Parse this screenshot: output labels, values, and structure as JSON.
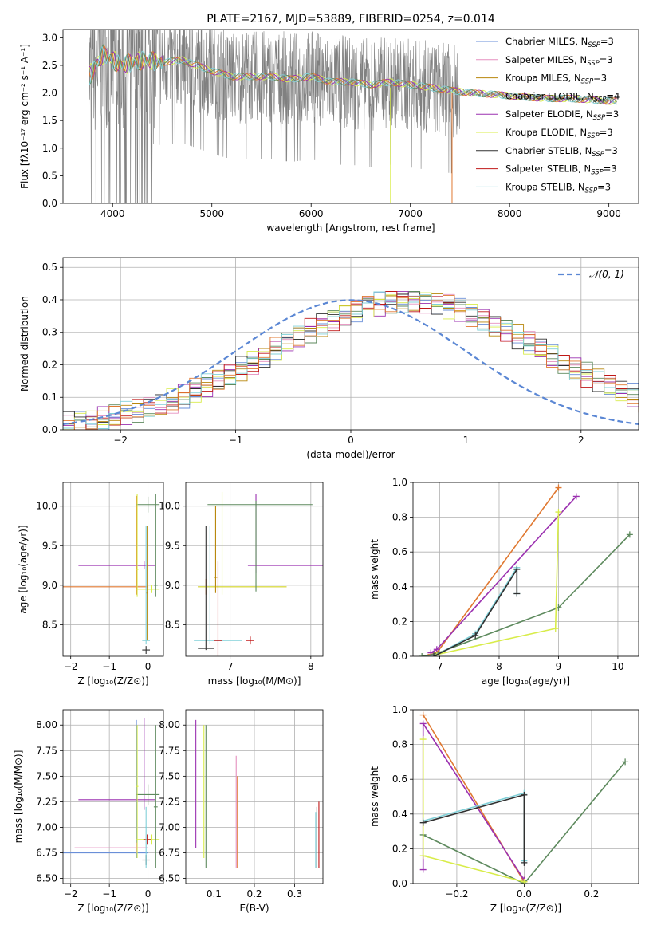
{
  "colors": {
    "Chabrier MILES": "#6a8fd8",
    "Salpeter MILES": "#e58fbf",
    "Kroupa MILES": "#b8860b",
    "Chabrier ELODIE": "#5e8a5e",
    "Salpeter ELODIE": "#9b30b0",
    "Kroupa ELODIE": "#d8ec4a",
    "Chabrier STELIB": "#303030",
    "Salpeter STELIB": "#c01818",
    "Kroupa STELIB": "#80d0d8",
    "data": "#808080",
    "orange": "#e07830",
    "gaussian": "#5b87d4"
  },
  "chart_data": [
    {
      "id": "spectrum",
      "type": "line",
      "title": "PLATE=2167, MJD=53889, FIBERID=0254, z=0.014",
      "xlabel": "wavelength [Angstrom, rest frame]",
      "ylabel": "Flux [fλ10⁻¹⁷ erg cm⁻² s⁻¹ A⁻¹]",
      "xlim": [
        3500,
        9300
      ],
      "ylim": [
        0,
        3.15
      ],
      "xticks": [
        4000,
        5000,
        6000,
        7000,
        8000,
        9000
      ],
      "yticks": [
        0.0,
        0.5,
        1.0,
        1.5,
        2.0,
        2.5,
        3.0
      ],
      "grid": false,
      "legend_position": "top-right",
      "legend": [
        {
          "label": "Chabrier MILES, N",
          "sub": "SSP",
          "tail": "=3",
          "color": "Chabrier MILES"
        },
        {
          "label": "Salpeter MILES, N",
          "sub": "SSP",
          "tail": "=3",
          "color": "Salpeter MILES"
        },
        {
          "label": "Kroupa MILES, N",
          "sub": "SSP",
          "tail": "=3",
          "color": "Kroupa MILES"
        },
        {
          "label": "Chabrier ELODIE, N",
          "sub": "SSP",
          "tail": "=4",
          "color": "Chabrier ELODIE"
        },
        {
          "label": "Salpeter ELODIE, N",
          "sub": "SSP",
          "tail": "=3",
          "color": "Salpeter ELODIE"
        },
        {
          "label": "Kroupa ELODIE, N",
          "sub": "SSP",
          "tail": "=3",
          "color": "Kroupa ELODIE"
        },
        {
          "label": "Chabrier STELIB, N",
          "sub": "SSP",
          "tail": "=3",
          "color": "Chabrier STELIB"
        },
        {
          "label": "Salpeter STELIB, N",
          "sub": "SSP",
          "tail": "=3",
          "color": "Salpeter STELIB"
        },
        {
          "label": "Kroupa STELIB, N",
          "sub": "SSP",
          "tail": "=3",
          "color": "Kroupa STELIB"
        }
      ],
      "series": [
        {
          "name": "data",
          "color": "data",
          "wl_range": [
            3760,
            9080
          ]
        },
        {
          "name": "model",
          "color": "Kroupa STELIB",
          "x": [
            3760,
            3900,
            4000,
            4100,
            4300,
            4500,
            4700,
            4850,
            5000,
            5200,
            5400,
            5600,
            5800,
            6000,
            6200,
            6400,
            6600,
            6800,
            7000,
            7200,
            7400,
            7600,
            7800,
            8000,
            8200,
            8400,
            8600,
            8800,
            9000,
            9080
          ],
          "y": [
            2.3,
            2.7,
            2.6,
            2.5,
            2.6,
            2.55,
            2.6,
            2.5,
            2.4,
            2.3,
            2.3,
            2.3,
            2.25,
            2.3,
            2.2,
            2.2,
            2.15,
            2.2,
            2.15,
            2.1,
            2.05,
            2.0,
            1.98,
            1.95,
            1.92,
            1.9,
            1.9,
            1.88,
            1.85,
            1.85
          ]
        }
      ]
    },
    {
      "id": "residuals",
      "type": "histogram",
      "xlabel": "(data-model)/error",
      "ylabel": "Normed distribution",
      "xlim": [
        -2.5,
        2.5
      ],
      "ylim": [
        0,
        0.53
      ],
      "xticks": [
        -2,
        -1,
        0,
        1,
        2
      ],
      "yticks": [
        0.0,
        0.1,
        0.2,
        0.3,
        0.4,
        0.5
      ],
      "grid": true,
      "legend_position": "top-right",
      "legend": [
        {
          "label": "𝒩(0, 1)",
          "color": "gaussian"
        }
      ],
      "bin_width": 0.1,
      "x_start": -2.5,
      "base": [
        0.018,
        0.022,
        0.027,
        0.033,
        0.04,
        0.048,
        0.056,
        0.066,
        0.077,
        0.089,
        0.104,
        0.119,
        0.135,
        0.152,
        0.17,
        0.189,
        0.208,
        0.228,
        0.248,
        0.268,
        0.288,
        0.307,
        0.325,
        0.342,
        0.357,
        0.37,
        0.381,
        0.39,
        0.396,
        0.399,
        0.399,
        0.396,
        0.39,
        0.381,
        0.37,
        0.357,
        0.342,
        0.325,
        0.307,
        0.288,
        0.268,
        0.248,
        0.228,
        0.208,
        0.189,
        0.17,
        0.152,
        0.135,
        0.119,
        0.104,
        0.089,
        0.077,
        0.066,
        0.056,
        0.048,
        0.04,
        0.033,
        0.027,
        0.022,
        0.018
      ]
    },
    {
      "id": "age-vs-Z",
      "type": "scatter",
      "xlabel": "Z [log₁₀(Z/Z⊙)]",
      "ylabel": "age  [log₁₀(age/yr)]",
      "xlim": [
        -2.2,
        0.4
      ],
      "ylim": [
        8.1,
        10.3
      ],
      "xticks": [
        -2,
        -1,
        0
      ],
      "yticks": [
        8.5,
        9.0,
        9.5,
        10.0
      ],
      "grid": true,
      "points": [
        {
          "x": -0.3,
          "y": 8.98,
          "xerr": [
            1.9,
            0.3
          ],
          "yerr": [
            0.1,
            1.15
          ],
          "color": "orange"
        },
        {
          "x": -0.1,
          "y": 9.25,
          "xerr": [
            1.7,
            0.3
          ],
          "yerr": [
            0.05,
            0.05
          ],
          "color": "Salpeter ELODIE"
        },
        {
          "x": 0.0,
          "y": 10.02,
          "xerr": [
            0.3,
            0.3
          ],
          "yerr": [
            0.1,
            0.1
          ],
          "color": "Chabrier ELODIE"
        },
        {
          "x": 0.1,
          "y": 8.95,
          "xerr": [
            0.4,
            0.2
          ],
          "yerr": [
            0.05,
            0.05
          ],
          "color": "Kroupa ELODIE"
        },
        {
          "x": -0.05,
          "y": 8.3,
          "xerr": [
            0.1,
            0.1
          ],
          "yerr": [
            0.05,
            1.45
          ],
          "color": "Kroupa STELIB"
        },
        {
          "x": -0.05,
          "y": 8.18,
          "xerr": [
            0.1,
            0.1
          ],
          "yerr": [
            0.05,
            0.05
          ],
          "color": "Chabrier STELIB"
        },
        {
          "x": 0.2,
          "y": 9.0,
          "xerr": [
            0.05,
            0.05
          ],
          "yerr": [
            0.15,
            1.15
          ],
          "color": "Chabrier ELODIE"
        },
        {
          "x": -0.28,
          "y": 9.2,
          "xerr": [
            0.03,
            0.03
          ],
          "yerr": [
            0.35,
            0.95
          ],
          "color": "Kroupa ELODIE"
        },
        {
          "x": -0.02,
          "y": 8.9,
          "xerr": [
            0.02,
            0.02
          ],
          "yerr": [
            0.6,
            0.85
          ],
          "color": "Kroupa MILES"
        }
      ]
    },
    {
      "id": "age-vs-mass",
      "type": "scatter",
      "xlabel": "mass [log₁₀(M/M⊙)]",
      "xlim": [
        6.45,
        8.15
      ],
      "ylim": [
        8.1,
        10.3
      ],
      "xticks": [
        7,
        8
      ],
      "yticks": [
        8.5,
        9.0,
        9.5,
        10.0
      ],
      "grid": true,
      "points": [
        {
          "x": 6.7,
          "y": 8.98,
          "xerr": [
            0.1,
            1.0
          ],
          "yerr": [
            0.1,
            0.1
          ],
          "color": "orange"
        },
        {
          "x": 6.9,
          "y": 8.98,
          "xerr": [
            0.3,
            0.8
          ],
          "yerr": [
            0.1,
            1.2
          ],
          "color": "Kroupa ELODIE"
        },
        {
          "x": 7.32,
          "y": 9.25,
          "xerr": [
            0.1,
            0.85
          ],
          "yerr": [
            0.1,
            0.9
          ],
          "color": "Salpeter ELODIE"
        },
        {
          "x": 7.32,
          "y": 10.02,
          "xerr": [
            0.6,
            0.7
          ],
          "yerr": [
            1.1,
            0.05
          ],
          "color": "Chabrier ELODIE"
        },
        {
          "x": 6.75,
          "y": 8.3,
          "xerr": [
            0.2,
            0.4
          ],
          "yerr": [
            0.05,
            1.45
          ],
          "color": "Kroupa STELIB"
        },
        {
          "x": 6.7,
          "y": 8.2,
          "xerr": [
            0.1,
            0.1
          ],
          "yerr": [
            0.02,
            1.55
          ],
          "color": "Chabrier STELIB"
        },
        {
          "x": 6.85,
          "y": 8.3,
          "xerr": [
            0.05,
            0.05
          ],
          "yerr": [
            0.3,
            1.0
          ],
          "color": "Salpeter STELIB"
        },
        {
          "x": 7.25,
          "y": 8.3,
          "xerr": [
            0.05,
            0.05
          ],
          "yerr": [
            0.05,
            0.05
          ],
          "color": "Salpeter STELIB"
        },
        {
          "x": 6.82,
          "y": 9.1,
          "xerr": [
            0.02,
            0.02
          ],
          "yerr": [
            0.2,
            0.9
          ],
          "color": "Kroupa MILES"
        }
      ]
    },
    {
      "id": "massweight-vs-age",
      "type": "line",
      "xlabel": "age  [log₁₀(age/yr)]",
      "ylabel": "mass weight",
      "xlim": [
        6.55,
        10.35
      ],
      "ylim": [
        0,
        1.0
      ],
      "xticks": [
        7,
        8,
        9,
        10
      ],
      "yticks": [
        0.0,
        0.2,
        0.4,
        0.6,
        0.8,
        1.0
      ],
      "grid": true,
      "series": [
        {
          "color": "orange",
          "x": [
            6.85,
            6.95,
            9.0
          ],
          "y": [
            0.01,
            0.02,
            0.97
          ]
        },
        {
          "color": "Salpeter ELODIE",
          "x": [
            6.85,
            6.95,
            9.3
          ],
          "y": [
            0.02,
            0.04,
            0.92
          ]
        },
        {
          "color": "Chabrier ELODIE",
          "x": [
            6.7,
            6.9,
            9.0,
            10.2
          ],
          "y": [
            0.0,
            0.01,
            0.28,
            0.7
          ]
        },
        {
          "color": "Kroupa ELODIE",
          "x": [
            6.95,
            8.95,
            9.0
          ],
          "y": [
            0.01,
            0.16,
            0.83
          ]
        },
        {
          "color": "Kroupa STELIB",
          "x": [
            6.9,
            7.6,
            8.3,
            8.3
          ],
          "y": [
            0.0,
            0.13,
            0.51,
            0.36
          ]
        },
        {
          "color": "Chabrier STELIB",
          "x": [
            6.9,
            7.6,
            8.3,
            8.3
          ],
          "y": [
            0.0,
            0.12,
            0.5,
            0.36
          ]
        }
      ]
    },
    {
      "id": "mass-vs-Z",
      "type": "scatter",
      "xlabel": "Z [log₁₀(Z/Z⊙)]",
      "ylabel": "mass [log₁₀(M/M⊙)]",
      "xlim": [
        -2.2,
        0.4
      ],
      "ylim": [
        6.45,
        8.15
      ],
      "xticks": [
        -2,
        -1,
        0
      ],
      "yticks": [
        6.5,
        6.75,
        7.0,
        7.25,
        7.5,
        7.75,
        8.0
      ],
      "grid": true,
      "points": [
        {
          "x": -0.3,
          "y": 6.75,
          "xerr": [
            1.9,
            0.3
          ],
          "yerr": [
            0.05,
            1.3
          ],
          "color": "Chabrier MILES"
        },
        {
          "x": -0.3,
          "y": 6.8,
          "xerr": [
            1.6,
            0.3
          ],
          "yerr": [
            0.05,
            0.05
          ],
          "color": "Salpeter MILES"
        },
        {
          "x": -0.1,
          "y": 7.27,
          "xerr": [
            1.7,
            0.3
          ],
          "yerr": [
            0.1,
            0.8
          ],
          "color": "Salpeter ELODIE"
        },
        {
          "x": 0.0,
          "y": 7.32,
          "xerr": [
            0.3,
            0.3
          ],
          "yerr": [
            0.1,
            0.1
          ],
          "color": "Chabrier ELODIE"
        },
        {
          "x": 0.1,
          "y": 6.88,
          "xerr": [
            0.4,
            0.2
          ],
          "yerr": [
            0.05,
            0.05
          ],
          "color": "Kroupa ELODIE"
        },
        {
          "x": -0.02,
          "y": 6.88,
          "xerr": [
            0.1,
            0.1
          ],
          "yerr": [
            0.05,
            0.05
          ],
          "color": "Salpeter STELIB"
        },
        {
          "x": -0.05,
          "y": 6.68,
          "xerr": [
            0.1,
            0.1
          ],
          "yerr": [
            0.05,
            0.05
          ],
          "color": "Chabrier STELIB"
        },
        {
          "x": 0.2,
          "y": 7.2,
          "xerr": [
            0.05,
            0.05
          ],
          "yerr": [
            0.6,
            0.8
          ],
          "color": "Chabrier ELODIE"
        },
        {
          "x": -0.28,
          "y": 7.4,
          "xerr": [
            0.03,
            0.03
          ],
          "yerr": [
            0.7,
            0.6
          ],
          "color": "Kroupa ELODIE"
        },
        {
          "x": -0.05,
          "y": 7.0,
          "xerr": [
            0.02,
            0.02
          ],
          "yerr": [
            0.4,
            0.2
          ],
          "color": "Kroupa STELIB"
        }
      ]
    },
    {
      "id": "mass-vs-EBV",
      "type": "scatter",
      "xlabel": "E(B-V)",
      "xlim": [
        0.03,
        0.37
      ],
      "ylim": [
        6.45,
        8.15
      ],
      "xticks": [
        0.1,
        0.2,
        0.3
      ],
      "yticks": [
        6.5,
        6.75,
        7.0,
        7.25,
        7.5,
        7.75,
        8.0
      ],
      "grid": true,
      "points": [
        {
          "x": 0.055,
          "y": 7.4,
          "xerr": [
            0,
            0
          ],
          "yerr": [
            0.6,
            0.65
          ],
          "color": "Salpeter ELODIE"
        },
        {
          "x": 0.075,
          "y": 7.3,
          "xerr": [
            0,
            0
          ],
          "yerr": [
            0.6,
            0.7
          ],
          "color": "Kroupa ELODIE"
        },
        {
          "x": 0.08,
          "y": 7.3,
          "xerr": [
            0,
            0
          ],
          "yerr": [
            0.7,
            0.7
          ],
          "color": "Chabrier ELODIE"
        },
        {
          "x": 0.155,
          "y": 7.1,
          "xerr": [
            0,
            0
          ],
          "yerr": [
            0.5,
            0.6
          ],
          "color": "Salpeter MILES"
        },
        {
          "x": 0.158,
          "y": 7.0,
          "xerr": [
            0,
            0
          ],
          "yerr": [
            0.4,
            0.5
          ],
          "color": "orange"
        },
        {
          "x": 0.355,
          "y": 6.9,
          "xerr": [
            0,
            0
          ],
          "yerr": [
            0.3,
            0.3
          ],
          "color": "Chabrier STELIB"
        },
        {
          "x": 0.36,
          "y": 6.95,
          "xerr": [
            0,
            0
          ],
          "yerr": [
            0.35,
            0.3
          ],
          "color": "Salpeter STELIB"
        },
        {
          "x": 0.352,
          "y": 6.9,
          "xerr": [
            0,
            0
          ],
          "yerr": [
            0.3,
            0.25
          ],
          "color": "Kroupa STELIB"
        }
      ]
    },
    {
      "id": "massweight-vs-Z",
      "type": "line",
      "xlabel": "Z [log₁₀(Z/Z⊙)]",
      "ylabel": "mass weight",
      "xlim": [
        -0.33,
        0.34
      ],
      "ylim": [
        0,
        1.0
      ],
      "xticks": [
        -0.2,
        0.0,
        0.2
      ],
      "yticks": [
        0.0,
        0.2,
        0.4,
        0.6,
        0.8,
        1.0
      ],
      "grid": true,
      "series": [
        {
          "color": "orange",
          "x": [
            -0.3,
            0.0,
            0.0
          ],
          "y": [
            0.97,
            0.01,
            0.02
          ]
        },
        {
          "color": "Salpeter ELODIE",
          "x": [
            -0.3,
            -0.3,
            0.0
          ],
          "y": [
            0.08,
            0.92,
            0.02
          ]
        },
        {
          "color": "Chabrier ELODIE",
          "x": [
            -0.3,
            0.0,
            0.3
          ],
          "y": [
            0.28,
            0.0,
            0.7
          ]
        },
        {
          "color": "Kroupa ELODIE",
          "x": [
            -0.3,
            -0.3,
            0.0
          ],
          "y": [
            0.83,
            0.16,
            0.01
          ]
        },
        {
          "color": "Kroupa STELIB",
          "x": [
            -0.3,
            0.0,
            0.0
          ],
          "y": [
            0.36,
            0.52,
            0.13
          ]
        },
        {
          "color": "Chabrier STELIB",
          "x": [
            -0.3,
            0.0,
            0.0
          ],
          "y": [
            0.35,
            0.51,
            0.12
          ]
        }
      ]
    }
  ]
}
